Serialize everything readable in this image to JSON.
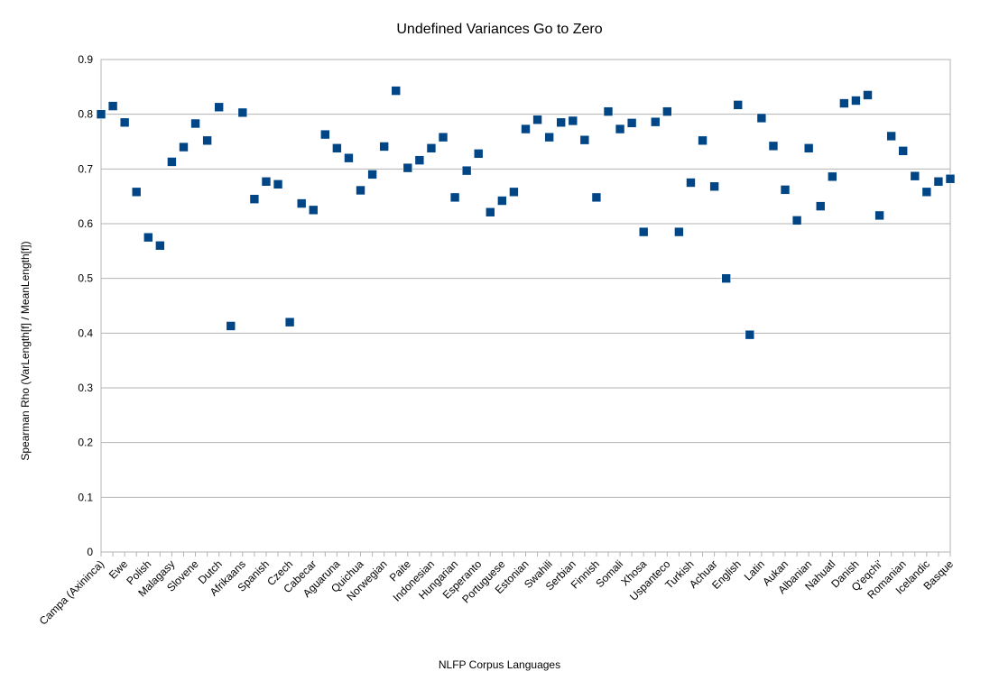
{
  "chart_data": {
    "type": "scatter",
    "title": "Undefined Variances Go to Zero",
    "xlabel": "NLFP Corpus Languages",
    "ylabel": "Spearman Rho (VarLength[f] / MeanLength[f])",
    "ylim": [
      0,
      0.9
    ],
    "yticks": [
      "0",
      "0.1",
      "0.2",
      "0.3",
      "0.4",
      "0.5",
      "0.6",
      "0.7",
      "0.8",
      "0.9"
    ],
    "grid": true,
    "legend": "none",
    "marker_color": "#004586",
    "categories": [
      "Campa (Axininca)",
      "",
      "Ewe",
      "",
      "Polish",
      "",
      "Malagasy",
      "",
      "Slovene",
      "",
      "Dutch",
      "",
      "Afrikaans",
      "",
      "Spanish",
      "",
      "Czech",
      "",
      "Cabecar",
      "",
      "Aguaruna",
      "",
      "Quichua",
      "",
      "Norwegian",
      "",
      "Paite",
      "",
      "Indonesian",
      "",
      "Hungarian",
      "",
      "Esperanto",
      "",
      "Portuguese",
      "",
      "Estonian",
      "",
      "Swahili",
      "",
      "Serbian",
      "",
      "Finnish",
      "",
      "Somali",
      "",
      "Xhosa",
      "",
      "Uspanteco",
      "",
      "Turkish",
      "",
      "Achuar",
      "",
      "English",
      "",
      "Latin",
      "",
      "Aukan",
      "",
      "Albanian",
      "",
      "Nahuatl",
      "",
      "Danish",
      "",
      "Q'eqchi'",
      "",
      "Romanian",
      "",
      "Icelandic",
      "",
      "Basque"
    ],
    "values": [
      0.8,
      0.815,
      0.785,
      0.658,
      0.575,
      0.56,
      0.713,
      0.74,
      0.783,
      0.752,
      0.813,
      0.413,
      0.803,
      0.645,
      0.677,
      0.672,
      0.42,
      0.637,
      0.625,
      0.763,
      0.738,
      0.72,
      0.661,
      0.69,
      0.741,
      0.843,
      0.702,
      0.716,
      0.738,
      0.758,
      0.648,
      0.697,
      0.728,
      0.621,
      0.642,
      0.658,
      0.773,
      0.79,
      0.758,
      0.785,
      0.788,
      0.753,
      0.648,
      0.805,
      0.773,
      0.784,
      0.585,
      0.786,
      0.805,
      0.585,
      0.675,
      0.752,
      0.668,
      0.5,
      0.817,
      0.397,
      0.793,
      0.742,
      0.662,
      0.606,
      0.738,
      0.632,
      0.686,
      0.82,
      0.825,
      0.835,
      0.615,
      0.76,
      0.733,
      0.687,
      0.658,
      0.677,
      0.682
    ]
  }
}
